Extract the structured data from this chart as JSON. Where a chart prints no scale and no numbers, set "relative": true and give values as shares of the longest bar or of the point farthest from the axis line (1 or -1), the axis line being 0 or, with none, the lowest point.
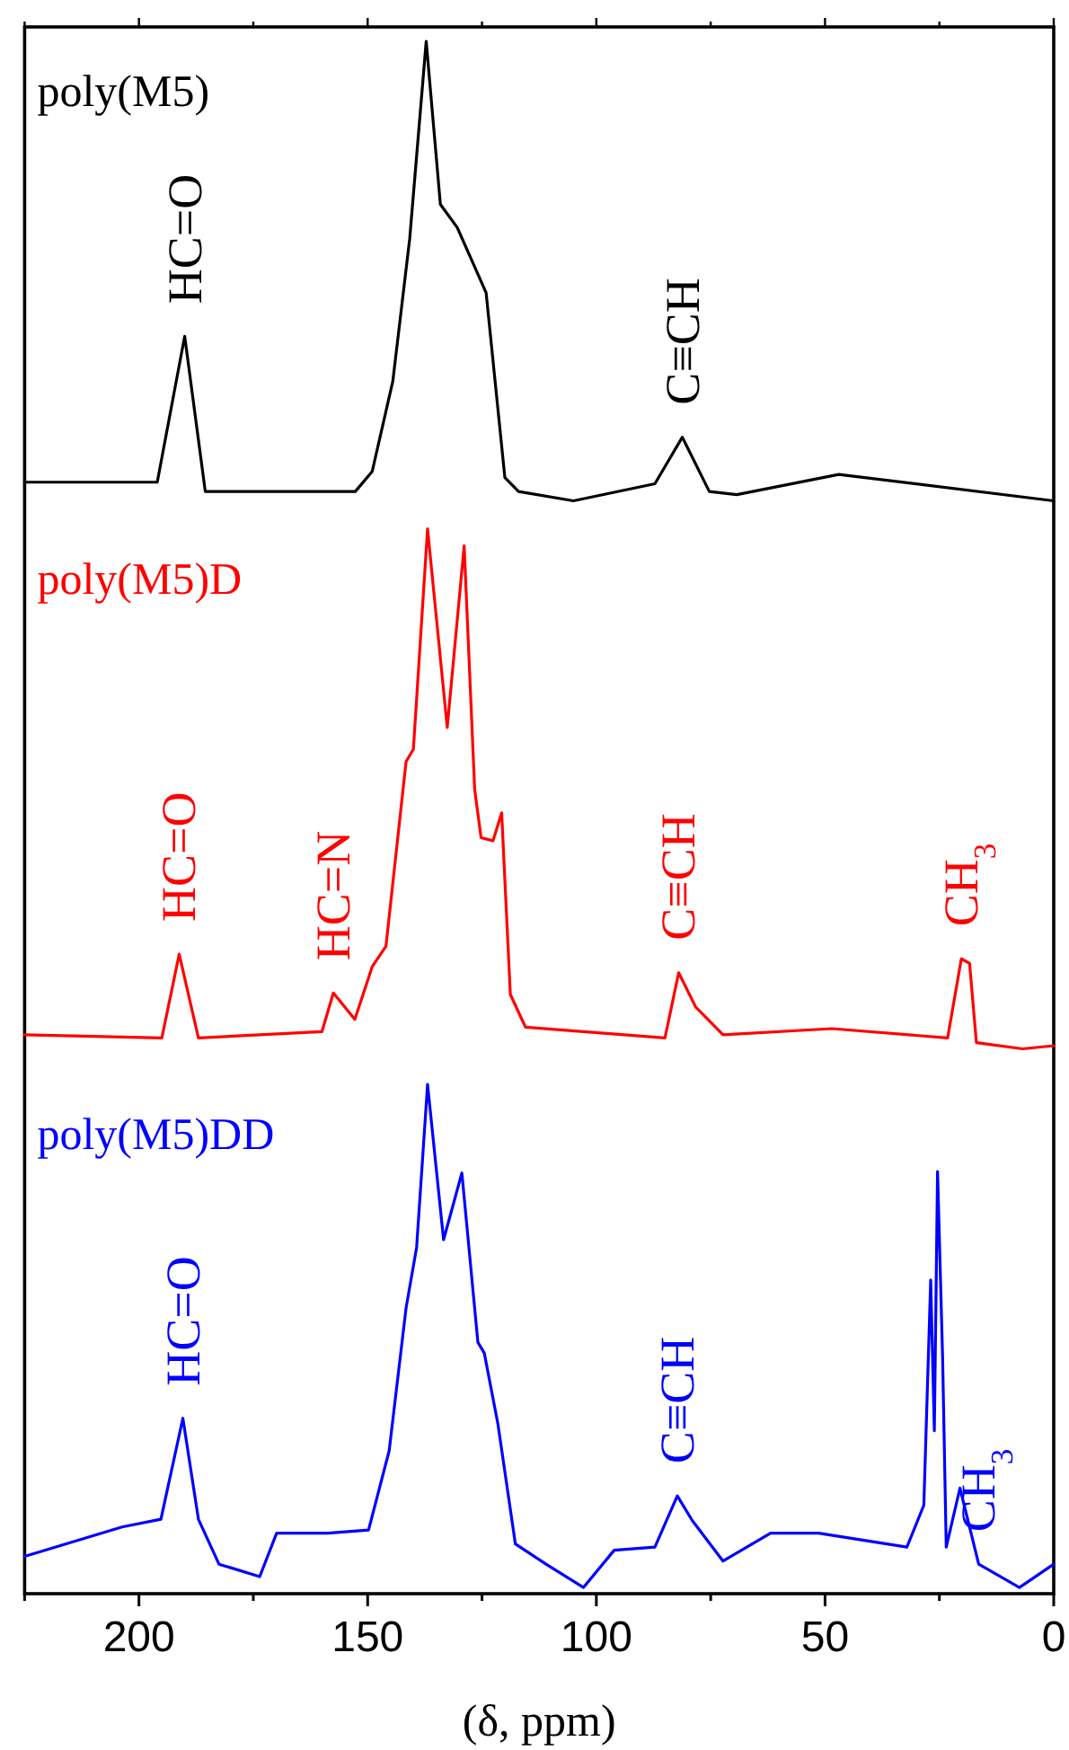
{
  "chart_data": {
    "type": "line",
    "relative": true,
    "xlabel": "(δ, ppm)",
    "xlim": [
      225,
      0
    ],
    "xticks": [
      {
        "value": 225,
        "label": null
      },
      200,
      {
        "value": 175,
        "label": null
      },
      150,
      {
        "value": 125,
        "label": null
      },
      100,
      {
        "value": 75,
        "label": null
      },
      50,
      {
        "value": 25,
        "label": null
      },
      0
    ],
    "legend": "top left",
    "series": [
      {
        "name": "poly(M5)",
        "color": "#000000",
        "x": [
          225,
          196,
          190,
          185.5,
          152.7,
          149,
          144.5,
          140.8,
          137.2,
          134.1,
          130.4,
          127.4,
          124.1,
          120,
          117,
          105,
          87.2,
          81.2,
          75.3,
          69.3,
          47,
          0
        ],
        "values": [
          0.716,
          0.716,
          0.81,
          0.71,
          0.71,
          0.723,
          0.781,
          0.873,
          1.0,
          0.895,
          0.88,
          0.86,
          0.838,
          0.719,
          0.71,
          0.704,
          0.715,
          0.745,
          0.71,
          0.708,
          0.721,
          0.704
        ]
      },
      {
        "name": "poly(M5)D",
        "color": "#ff0000",
        "x": [
          225,
          195,
          191.2,
          187,
          160,
          157.5,
          152.8,
          149,
          146,
          141.6,
          140,
          136.9,
          132.6,
          128.9,
          126.6,
          125.2,
          122.6,
          120.7,
          118.8,
          115.5,
          85,
          82,
          78.3,
          72.3,
          48.5,
          23.2,
          20.2,
          18.4,
          16.9,
          6.8,
          0
        ],
        "values": [
          0.36,
          0.358,
          0.412,
          0.358,
          0.362,
          0.387,
          0.37,
          0.404,
          0.417,
          0.536,
          0.544,
          0.686,
          0.558,
          0.675,
          0.518,
          0.487,
          0.485,
          0.503,
          0.386,
          0.365,
          0.358,
          0.4,
          0.378,
          0.36,
          0.364,
          0.358,
          0.409,
          0.406,
          0.355,
          0.351,
          0.353
        ]
      },
      {
        "name": "poly(M5)DD",
        "color": "#0000ff",
        "x": [
          225,
          203.7,
          195.2,
          190.4,
          187,
          182.5,
          173.6,
          169.9,
          158.7,
          149.8,
          145.3,
          141.6,
          139.3,
          136.9,
          133.4,
          129.4,
          125.9,
          124.5,
          121.5,
          117.7,
          111,
          102.8,
          96.1,
          87.2,
          82.3,
          79,
          72.3,
          61.9,
          51.4,
          32.1,
          28.4,
          26.9,
          26.1,
          25.4,
          24.3,
          23.5,
          20.5,
          16.4,
          7.5,
          0
        ],
        "values": [
          0.024,
          0.043,
          0.048,
          0.113,
          0.048,
          0.019,
          0.011,
          0.039,
          0.039,
          0.041,
          0.092,
          0.184,
          0.223,
          0.328,
          0.228,
          0.271,
          0.162,
          0.155,
          0.109,
          0.032,
          0.019,
          0.004,
          0.028,
          0.03,
          0.063,
          0.047,
          0.021,
          0.039,
          0.039,
          0.03,
          0.057,
          0.202,
          0.105,
          0.272,
          0.153,
          0.03,
          0.068,
          0.019,
          0.004,
          0.019
        ]
      }
    ],
    "annotations": [
      {
        "text": "HC=O",
        "x": 190,
        "y": 0.81
      },
      {
        "text": "C≡CH",
        "x": 81.2,
        "y": 0.745
      },
      {
        "text": "HC=O",
        "x": 191.2,
        "y": 0.412
      },
      {
        "text": "HC=N",
        "x": 157.5,
        "y": 0.387
      },
      {
        "text": "C≡CH",
        "x": 82,
        "y": 0.4
      },
      {
        "text": "CH$_{3}$",
        "x": 20.2,
        "y": 0.409
      },
      {
        "text": "HC=O",
        "x": 190.4,
        "y": 0.113
      },
      {
        "text": "C≡CH",
        "x": 82.3,
        "y": 0.063
      },
      {
        "text": "CH$_{3}$",
        "x": 16.4,
        "y": 0.019
      }
    ]
  }
}
